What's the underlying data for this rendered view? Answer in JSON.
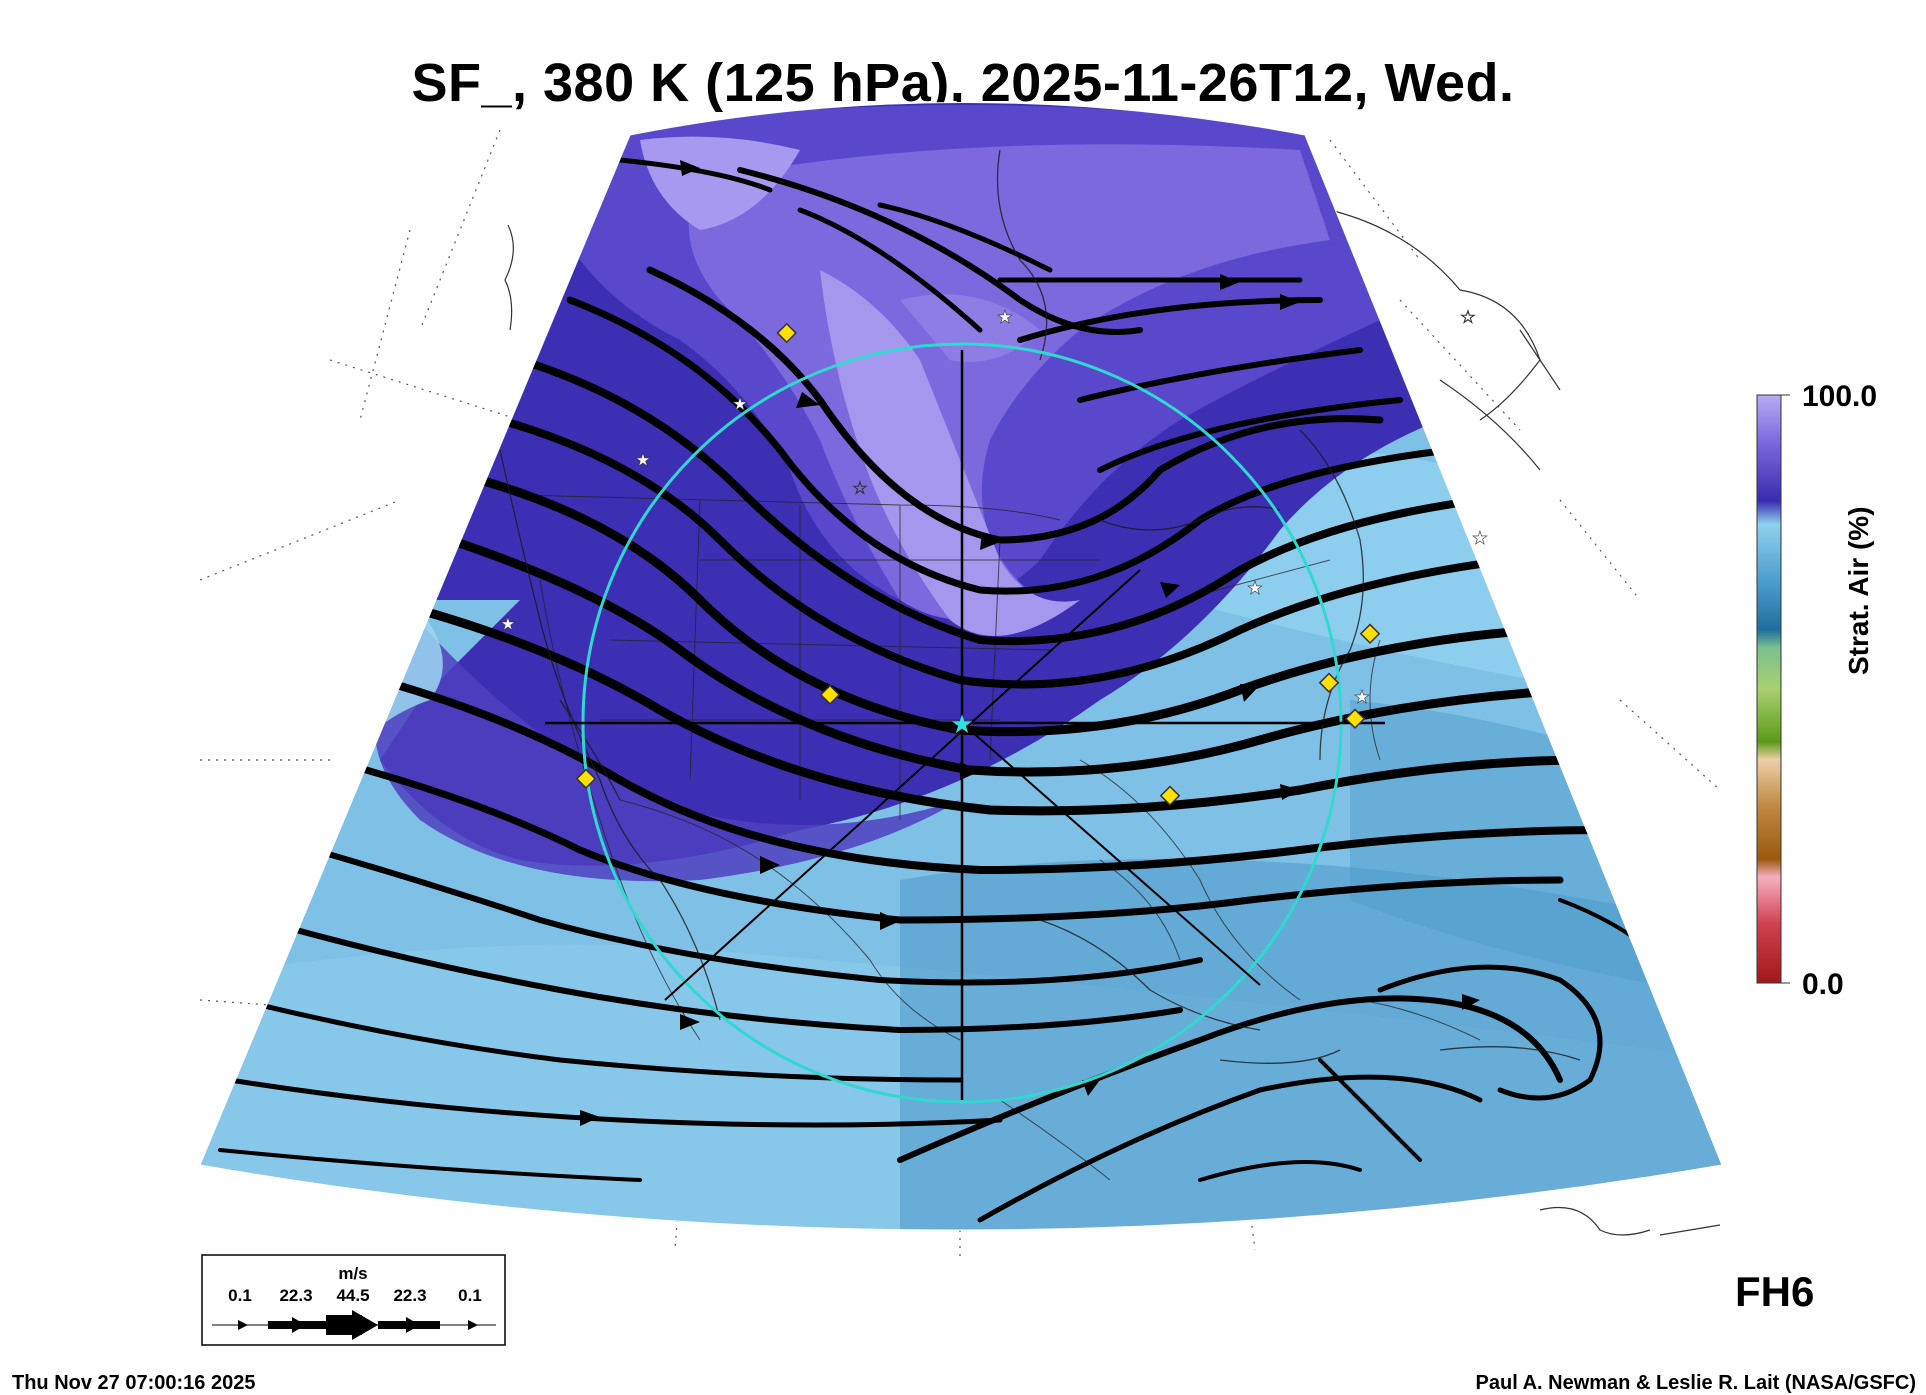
{
  "title": "SF_, 380 K (125 hPa), 2025-11-26T12, Wed.",
  "colorbar": {
    "label": "Strat. Air (%)",
    "max_label": "100.0",
    "min_label": "0.0",
    "stops": [
      "#b3a6f0",
      "#7b68de",
      "#3a2cb0",
      "#8fd0ee",
      "#5aaad4",
      "#2e7fb0",
      "#70b890",
      "#a8d070",
      "#6aa020",
      "#e0c090",
      "#c08840",
      "#9a5a10",
      "#f0a0b0",
      "#d04050",
      "#a01818"
    ]
  },
  "wind_legend": {
    "units": "m/s",
    "ticks": [
      "0.1",
      "22.3",
      "44.5",
      "22.3",
      "0.1"
    ]
  },
  "forecast_hour": "FH6",
  "run_timestamp": "Thu Nov 27 07:00:16 2025",
  "credit": "Paul A. Newman & Leslie R. Lait (NASA/GSFC)",
  "colors": {
    "strat_high": "#6a5ad8",
    "strat_mid": "#3b2db4",
    "trop": "#86c6e8",
    "trop_dark": "#5aa6d2",
    "streamline": "#000000",
    "range_ring": "#30d8d0",
    "marker_diamond": "#ffe000",
    "marker_star": "#ffffff"
  },
  "icons": [
    "white-star-marker",
    "yellow-diamond-marker",
    "cyan-star-marker",
    "streamline-arrow"
  ]
}
